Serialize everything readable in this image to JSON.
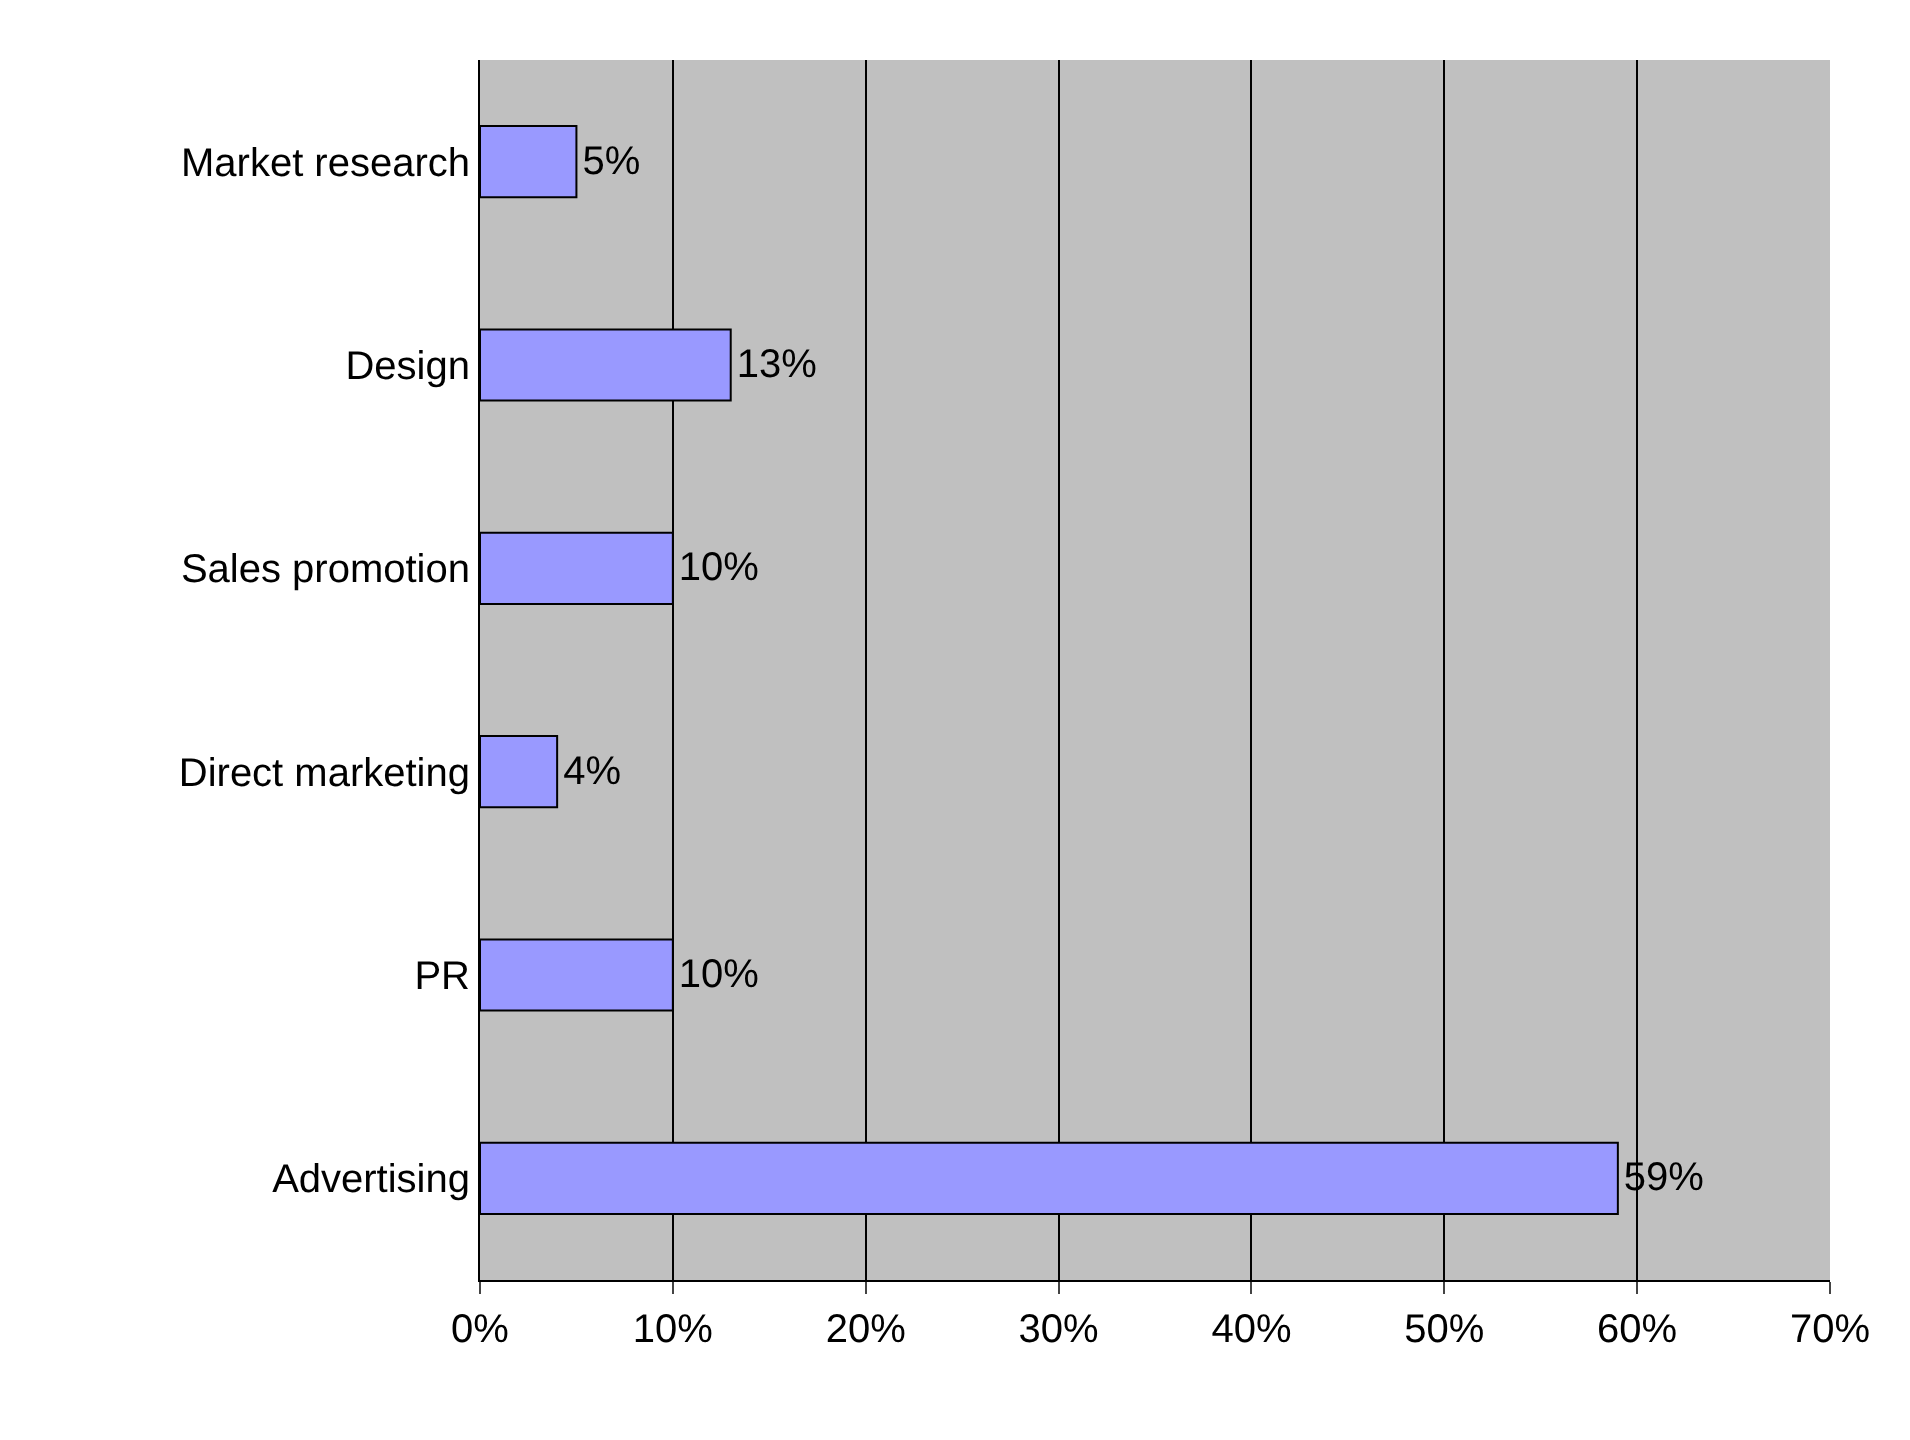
{
  "chart_data": {
    "type": "bar",
    "orientation": "horizontal",
    "categories": [
      "Market research",
      "Design",
      "Sales promotion",
      "Direct marketing",
      "PR",
      "Advertising"
    ],
    "values": [
      5,
      13,
      10,
      4,
      10,
      59
    ],
    "value_labels": [
      "5%",
      "13%",
      "10%",
      "4%",
      "10%",
      "59%"
    ],
    "color": "#9999ff",
    "xlim": [
      0,
      70
    ],
    "xticks": [
      {
        "value": 0,
        "label": "0%"
      },
      {
        "value": 10,
        "label": "10%"
      },
      {
        "value": 20,
        "label": "20%"
      },
      {
        "value": 30,
        "label": "30%"
      },
      {
        "value": 40,
        "label": "40%"
      },
      {
        "value": 50,
        "label": "50%"
      },
      {
        "value": 60,
        "label": "60%"
      },
      {
        "value": 70,
        "label": "70%"
      }
    ],
    "grid": "x",
    "legend": false
  }
}
